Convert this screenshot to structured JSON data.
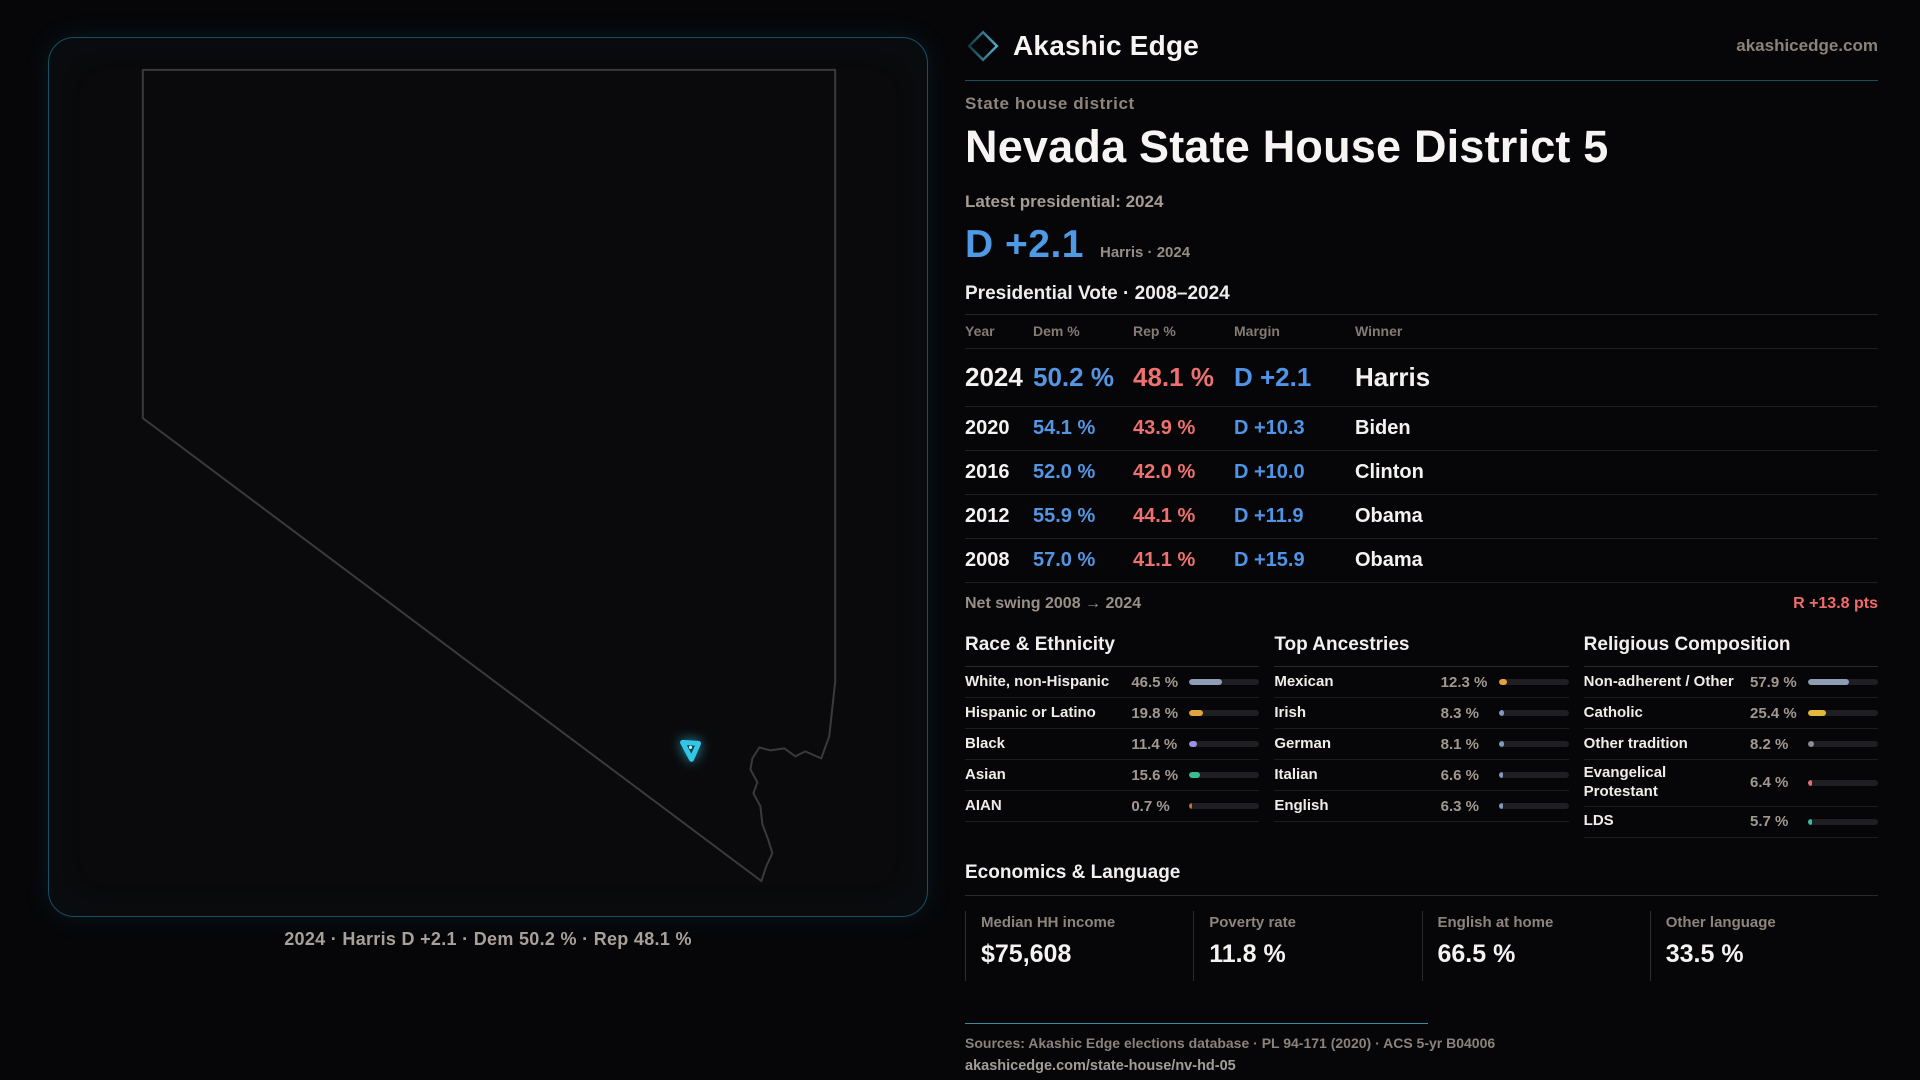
{
  "brand": {
    "name": "Akashic Edge",
    "domain": "akashicedge.com",
    "accent_teal": "#33c6e6"
  },
  "map": {
    "state": "Nevada",
    "caption": "2024 · Harris D +2.1 · Dem 50.2 % · Rep 48.1 %"
  },
  "header": {
    "kicker": "State house district",
    "title": "Nevada State House District 5",
    "latest_label": "Latest presidential: 2024",
    "margin_big": "D +2.1",
    "margin_note": "Harris · 2024",
    "margin_color": "#4f9ae4"
  },
  "table": {
    "title": "Presidential Vote · 2008–2024",
    "columns": {
      "year": "Year",
      "dem": "Dem %",
      "rep": "Rep %",
      "margin": "Margin",
      "winner": "Winner"
    },
    "dem_color": "#5596e3",
    "rep_color": "#ef716f",
    "rows": [
      {
        "year": "2024",
        "dem": "50.2 %",
        "rep": "48.1 %",
        "margin": "D +2.1",
        "winner": "Harris"
      },
      {
        "year": "2020",
        "dem": "54.1 %",
        "rep": "43.9 %",
        "margin": "D +10.3",
        "winner": "Biden"
      },
      {
        "year": "2016",
        "dem": "52.0 %",
        "rep": "42.0 %",
        "margin": "D +10.0",
        "winner": "Clinton"
      },
      {
        "year": "2012",
        "dem": "55.9 %",
        "rep": "44.1 %",
        "margin": "D +11.9",
        "winner": "Obama"
      },
      {
        "year": "2008",
        "dem": "57.0 %",
        "rep": "41.1 %",
        "margin": "D +15.9",
        "winner": "Obama"
      }
    ]
  },
  "swing": {
    "label": "Net swing 2008 → 2024",
    "value": "R +13.8 pts",
    "color": "#ef6c69"
  },
  "demographics": {
    "sections": [
      {
        "title": "Race & Ethnicity",
        "rows": [
          {
            "label": "White, non-Hispanic",
            "value": "46.5 %",
            "pct": 46.5,
            "color": "#8e9cb4"
          },
          {
            "label": "Hispanic or Latino",
            "value": "19.8 %",
            "pct": 19.8,
            "color": "#e2a33c"
          },
          {
            "label": "Black",
            "value": "11.4 %",
            "pct": 11.4,
            "color": "#9d90e8"
          },
          {
            "label": "Asian",
            "value": "15.6 %",
            "pct": 15.6,
            "color": "#37bd90"
          },
          {
            "label": "AIAN",
            "value": "0.7 %",
            "pct": 0.7,
            "color": "#c2702e"
          }
        ]
      },
      {
        "title": "Top Ancestries",
        "rows": [
          {
            "label": "Mexican",
            "value": "12.3 %",
            "pct": 12.3,
            "color": "#e2a33c"
          },
          {
            "label": "Irish",
            "value": "8.3 %",
            "pct": 8.3,
            "color": "#8099c0"
          },
          {
            "label": "German",
            "value": "8.1 %",
            "pct": 8.1,
            "color": "#8099c0"
          },
          {
            "label": "Italian",
            "value": "6.6 %",
            "pct": 6.6,
            "color": "#8099c0"
          },
          {
            "label": "English",
            "value": "6.3 %",
            "pct": 6.3,
            "color": "#8099c0"
          }
        ]
      },
      {
        "title": "Religious Composition",
        "rows": [
          {
            "label": "Non-adherent / Other",
            "value": "57.9 %",
            "pct": 57.9,
            "color": "#8e9cb4"
          },
          {
            "label": "Catholic",
            "value": "25.4 %",
            "pct": 25.4,
            "color": "#e2b93c"
          },
          {
            "label": "Other tradition",
            "value": "8.2 %",
            "pct": 8.2,
            "color": "#8d8d96"
          },
          {
            "label": "Evangelical Protestant",
            "value": "6.4 %",
            "pct": 6.4,
            "color": "#e56e72"
          },
          {
            "label": "LDS",
            "value": "5.7 %",
            "pct": 5.7,
            "color": "#35bcab"
          }
        ]
      }
    ]
  },
  "economics": {
    "title": "Economics & Language",
    "stats": [
      {
        "label": "Median HH income",
        "value": "$75,608"
      },
      {
        "label": "Poverty rate",
        "value": "11.8 %"
      },
      {
        "label": "English at home",
        "value": "66.5 %"
      },
      {
        "label": "Other language",
        "value": "33.5 %"
      }
    ]
  },
  "footer": {
    "sources": "Sources: Akashic Edge elections database · PL 94-171 (2020) · ACS 5-yr B04006",
    "permalink": "akashicedge.com/state-house/nv-hd-05"
  }
}
